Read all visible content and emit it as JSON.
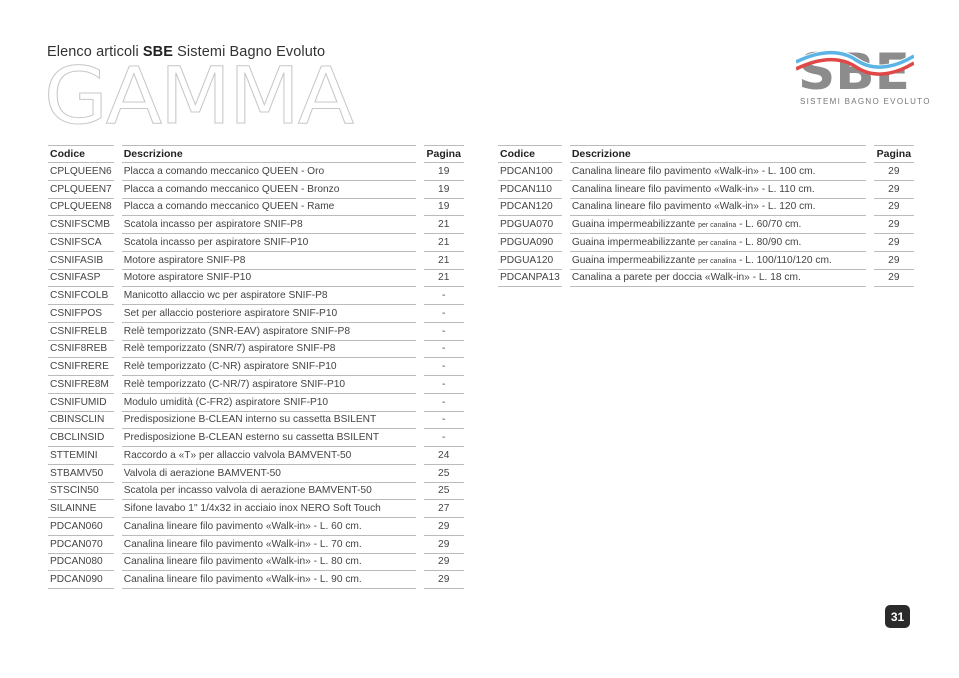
{
  "header": {
    "subtitle_pre": "Elenco articoli ",
    "subtitle_brand": "SBE",
    "subtitle_post": " Sistemi Bagno Evoluto",
    "watermark": "GAMMA"
  },
  "logo": {
    "letters": "SBE",
    "tagline": "SISTEMI BAGNO EVOLUTO",
    "colors": {
      "grey": "#8c8c8c",
      "blue": "#5bb4e5",
      "red": "#e04848"
    }
  },
  "columns": {
    "code": "Codice",
    "desc": "Descrizione",
    "page": "Pagina"
  },
  "left_table": [
    {
      "code": "CPLQUEEN6",
      "desc": "Placca a comando meccanico QUEEN  - Oro",
      "page": "19"
    },
    {
      "code": "CPLQUEEN7",
      "desc": "Placca a comando meccanico QUEEN  - Bronzo",
      "page": "19"
    },
    {
      "code": "CPLQUEEN8",
      "desc": "Placca a comando meccanico QUEEN  - Rame",
      "page": "19"
    },
    {
      "code": "CSNIFSCMB",
      "desc": "Scatola incasso per aspiratore SNIF-P8",
      "page": "21"
    },
    {
      "code": "CSNIFSCA",
      "desc": "Scatola incasso per aspiratore SNIF-P10",
      "page": "21"
    },
    {
      "code": "CSNIFASIB",
      "desc": "Motore aspiratore SNIF-P8",
      "page": "21"
    },
    {
      "code": "CSNIFASP",
      "desc": "Motore aspiratore SNIF-P10",
      "page": "21"
    },
    {
      "code": "CSNIFCOLB",
      "desc": "Manicotto allaccio wc per aspiratore SNIF-P8",
      "page": "-"
    },
    {
      "code": "CSNIFPOS",
      "desc": "Set per allaccio posteriore aspiratore SNIF-P10",
      "page": "-"
    },
    {
      "code": "CSNIFRELB",
      "desc": "Relè temporizzato (SNR-EAV) aspiratore SNIF-P8",
      "page": "-"
    },
    {
      "code": "CSNIF8REB",
      "desc": "Relè temporizzato (SNR/7) aspiratore SNIF-P8",
      "page": "-"
    },
    {
      "code": "CSNIFRERE",
      "desc": "Relè temporizzato (C-NR) aspiratore SNIF-P10",
      "page": "-"
    },
    {
      "code": "CSNIFRE8M",
      "desc": "Relè temporizzato (C-NR/7) aspiratore SNIF-P10",
      "page": "-"
    },
    {
      "code": "CSNIFUMID",
      "desc": "Modulo umidità (C-FR2) aspiratore SNIF-P10",
      "page": "-"
    },
    {
      "code": "CBINSCLIN",
      "desc": "Predisposizione B-CLEAN interno su cassetta BSILENT",
      "page": "-"
    },
    {
      "code": "CBCLINSID",
      "desc": "Predisposizione B-CLEAN esterno su cassetta BSILENT",
      "page": "-"
    },
    {
      "code": "STTEMINI",
      "desc": "Raccordo a «T» per allaccio valvola BAMVENT-50",
      "page": "24"
    },
    {
      "code": "STBAMV50",
      "desc": "Valvola di aerazione BAMVENT-50",
      "page": "25"
    },
    {
      "code": "STSCIN50",
      "desc": "Scatola per incasso valvola di aerazione BAMVENT-50",
      "page": "25"
    },
    {
      "code": "SILAINNE",
      "desc": "Sifone lavabo 1\" 1/4x32 in acciaio inox NERO Soft Touch",
      "page": "27"
    },
    {
      "code": "PDCAN060",
      "desc": "Canalina lineare filo pavimento «Walk-in» - L. 60 cm.",
      "page": "29"
    },
    {
      "code": "PDCAN070",
      "desc": "Canalina lineare filo pavimento «Walk-in» - L. 70 cm.",
      "page": "29"
    },
    {
      "code": "PDCAN080",
      "desc": "Canalina lineare filo pavimento «Walk-in» - L. 80 cm.",
      "page": "29"
    },
    {
      "code": "PDCAN090",
      "desc": "Canalina lineare filo pavimento «Walk-in» - L. 90 cm.",
      "page": "29"
    }
  ],
  "right_table": [
    {
      "code": "PDCAN100",
      "desc": "Canalina lineare filo pavimento «Walk-in» - L. 100 cm.",
      "page": "29"
    },
    {
      "code": "PDCAN110",
      "desc": "Canalina lineare filo pavimento «Walk-in» - L. 110 cm.",
      "page": "29"
    },
    {
      "code": "PDCAN120",
      "desc": "Canalina lineare filo pavimento «Walk-in» - L. 120 cm.",
      "page": "29"
    },
    {
      "code": "PDGUA070",
      "desc": "Guaina impermeabilizzante ",
      "desc_small": "per canalina",
      "desc_post": "  - L. 60/70 cm.",
      "page": "29"
    },
    {
      "code": "PDGUA090",
      "desc": "Guaina impermeabilizzante ",
      "desc_small": "per canalina",
      "desc_post": "  - L. 80/90 cm.",
      "page": "29"
    },
    {
      "code": "PDGUA120",
      "desc": "Guaina impermeabilizzante ",
      "desc_small": "per canalina",
      "desc_post": " - L. 100/110/120 cm.",
      "page": "29"
    },
    {
      "code": "PDCANPA13",
      "desc": "Canalina a parete per doccia «Walk-in»  - L. 18 cm.",
      "page": "29"
    }
  ],
  "footer": {
    "page_number": "31"
  }
}
